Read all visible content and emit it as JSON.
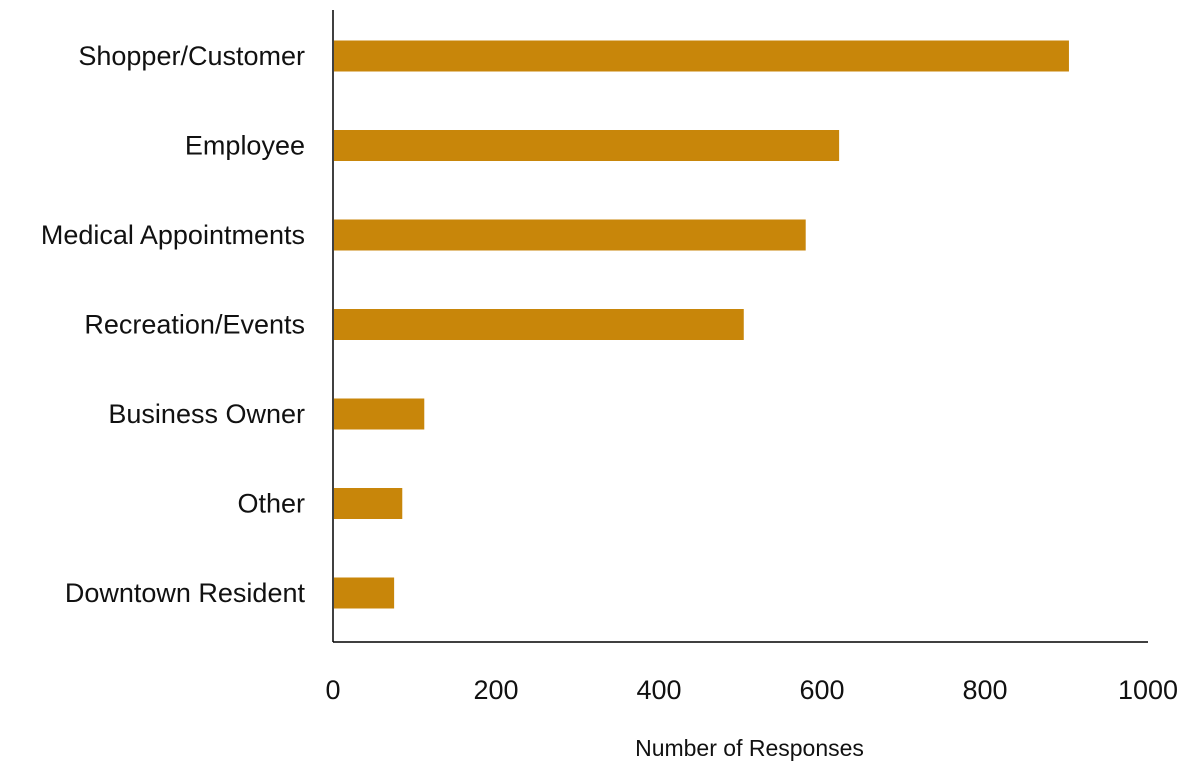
{
  "chart_data": {
    "type": "bar",
    "orientation": "horizontal",
    "title": "",
    "xlabel": "Number of Responses",
    "ylabel": "",
    "xlim": [
      0,
      1000
    ],
    "xticks": [
      "0",
      "200",
      "400",
      "600",
      "800",
      "1000"
    ],
    "grid": false,
    "legend": "none",
    "bar_color": "#C8860A",
    "axis_color": "#000000",
    "categories": [
      "Shopper/Customer",
      "Employee",
      "Medical Appointments",
      "Recreation/Events",
      "Business Owner",
      "Other",
      "Downtown Resident"
    ],
    "values": [
      903,
      621,
      580,
      504,
      112,
      85,
      75
    ]
  }
}
